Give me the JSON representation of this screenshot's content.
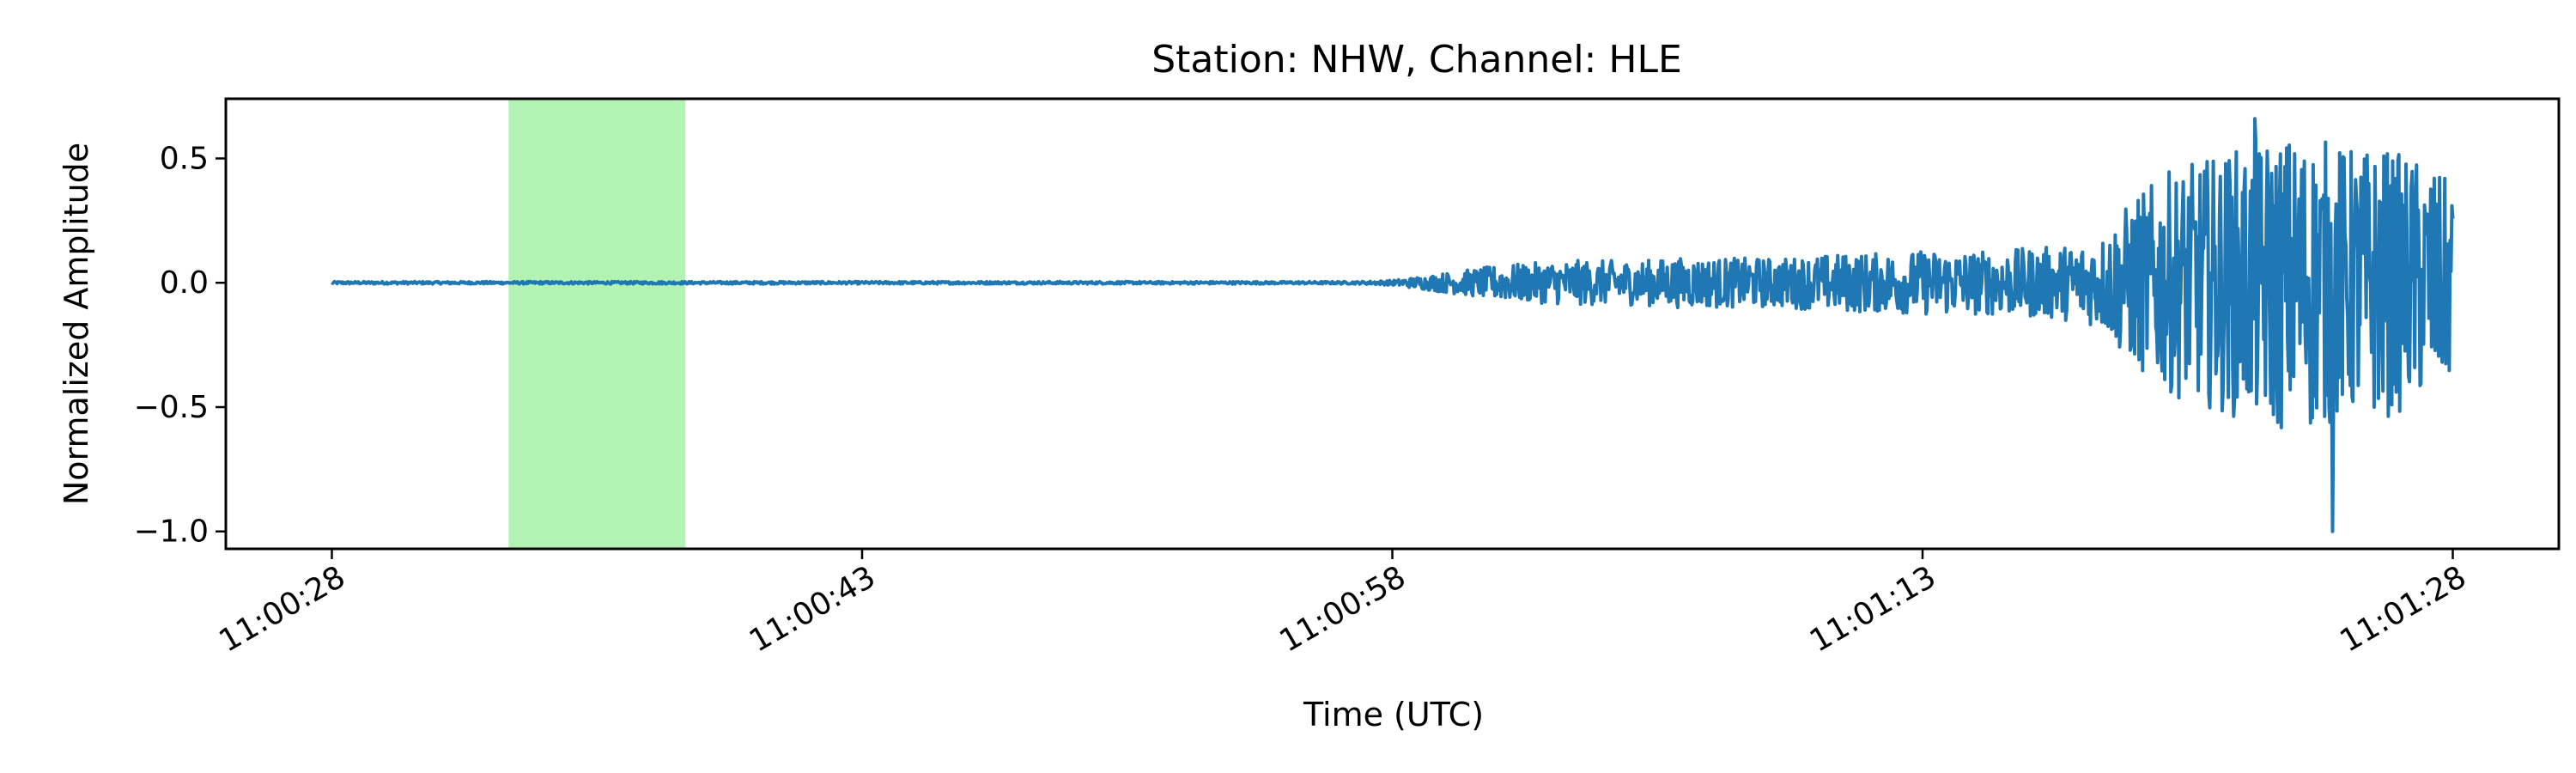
{
  "chart_data": {
    "type": "line",
    "title": "Station: NHW, Channel: HLE",
    "xlabel": "Time (UTC)",
    "ylabel": "Normalized Amplitude",
    "x_unit": "seconds after 11:00:28 UTC",
    "xlim": [
      -3,
      63
    ],
    "ylim": [
      -1.07,
      0.74
    ],
    "x_ticks": [
      {
        "value": 0,
        "label": "11:00:28"
      },
      {
        "value": 15,
        "label": "11:00:43"
      },
      {
        "value": 30,
        "label": "11:00:58"
      },
      {
        "value": 45,
        "label": "11:01:13"
      },
      {
        "value": 60,
        "label": "11:01:28"
      }
    ],
    "y_ticks": [
      {
        "value": 0.5,
        "label": "0.5"
      },
      {
        "value": 0.0,
        "label": "0.0"
      },
      {
        "value": -0.5,
        "label": "−0.5"
      },
      {
        "value": -1.0,
        "label": "−1.0"
      }
    ],
    "highlight_region": {
      "x_start": 5.0,
      "x_end": 10.0,
      "color": "#b2f2b2"
    },
    "series_color": "#1f77b4",
    "grid": false,
    "legend": false,
    "series": [
      {
        "x": [
          0,
          1,
          2,
          3,
          4,
          5,
          6,
          7,
          8,
          9,
          10,
          11,
          12,
          13,
          14,
          15,
          16,
          17,
          18,
          19,
          20,
          21,
          22,
          23,
          24,
          25,
          26,
          27,
          28,
          29,
          30,
          31,
          32,
          33,
          34,
          35,
          36,
          37,
          38,
          39,
          40,
          41,
          42,
          43,
          44,
          45,
          46,
          47,
          48,
          49,
          50,
          51,
          52,
          53,
          54,
          55,
          56,
          57,
          58,
          59,
          60
        ],
        "envelope": [
          0.005,
          0.005,
          0.005,
          0.005,
          0.005,
          0.005,
          0.005,
          0.005,
          0.005,
          0.005,
          0.005,
          0.005,
          0.005,
          0.005,
          0.005,
          0.005,
          0.005,
          0.005,
          0.005,
          0.005,
          0.005,
          0.005,
          0.005,
          0.005,
          0.005,
          0.005,
          0.005,
          0.005,
          0.005,
          0.005,
          0.01,
          0.03,
          0.05,
          0.07,
          0.08,
          0.09,
          0.09,
          0.09,
          0.1,
          0.1,
          0.1,
          0.1,
          0.11,
          0.12,
          0.12,
          0.13,
          0.13,
          0.13,
          0.14,
          0.15,
          0.18,
          0.35,
          0.45,
          0.5,
          0.55,
          0.6,
          0.6,
          0.55,
          0.55,
          0.5,
          0.4
        ]
      }
    ],
    "y_max": 0.66,
    "y_min": -1.0,
    "y_max_at_x": 54.4,
    "y_min_at_x": 56.6
  }
}
